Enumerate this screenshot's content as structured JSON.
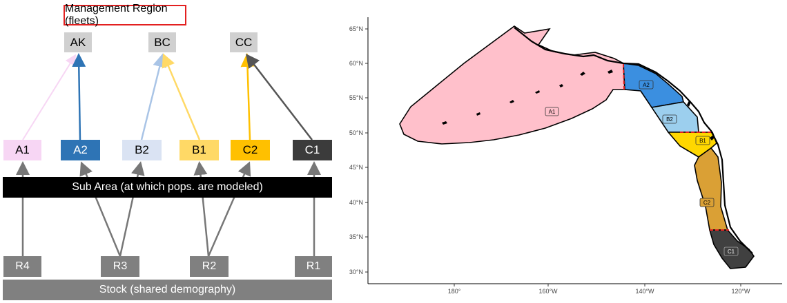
{
  "diagram": {
    "title": "Management Region (fleets)",
    "regions": [
      "AK",
      "BC",
      "CC"
    ],
    "subareas": [
      {
        "label": "A1",
        "color": "#f7d6f4"
      },
      {
        "label": "A2",
        "color": "#2e74b5"
      },
      {
        "label": "B2",
        "color": "#dae3f3"
      },
      {
        "label": "B1",
        "color": "#ffd966"
      },
      {
        "label": "C2",
        "color": "#ffc000"
      },
      {
        "label": "C1",
        "color": "#3b3b3b"
      }
    ],
    "subarea_bar": "Sub Area (at which pops. are modeled)",
    "recruitment": [
      "R4",
      "R3",
      "R2",
      "R1"
    ],
    "stock_bar": "Stock (shared demography)"
  },
  "map": {
    "y_ticks": [
      "65°N",
      "60°N",
      "55°N",
      "50°N",
      "45°N",
      "40°N",
      "35°N",
      "30°N"
    ],
    "x_ticks": [
      "180°",
      "160°W",
      "140°W",
      "120°W"
    ],
    "zones": [
      {
        "label": "A1",
        "color": "#ffc0cb"
      },
      {
        "label": "A2",
        "color": "#3b8fe0"
      },
      {
        "label": "B2",
        "color": "#9ccfee"
      },
      {
        "label": "B1",
        "color": "#ffd700"
      },
      {
        "label": "C2",
        "color": "#daa035"
      },
      {
        "label": "C1",
        "color": "#404040"
      }
    ]
  }
}
